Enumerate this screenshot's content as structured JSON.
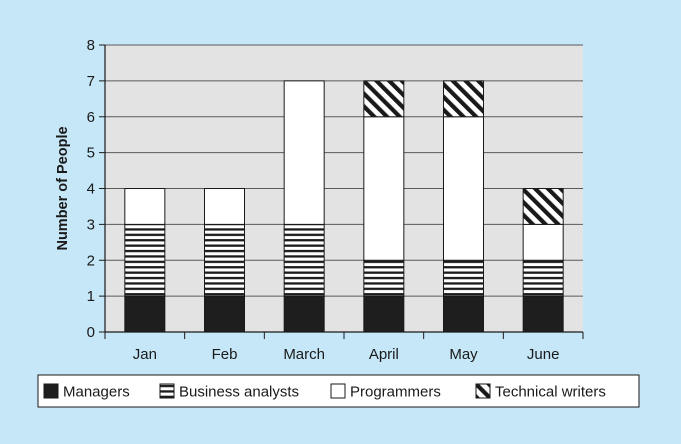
{
  "colors": {
    "background": "#c6e7f8",
    "plot_area": "#e3e3e3",
    "grid": "#5a5a5a",
    "managers": "#1e1e1e",
    "business_analysts": "#ffffff",
    "programmers": "#ffffff",
    "technical_writers": "#ffffff",
    "outline": "#1a1a1a"
  },
  "icons": {
    "managers": "solid-fill-swatch",
    "business_analysts": "horizontal-stripe-swatch",
    "programmers": "blank-swatch",
    "technical_writers": "diagonal-hatch-swatch"
  },
  "chart_data": {
    "type": "bar",
    "stacked": true,
    "title": "",
    "xlabel": "",
    "ylabel": "Number of People",
    "ylim": [
      0,
      8
    ],
    "yticks": [
      "0",
      "1",
      "2",
      "3",
      "4",
      "5",
      "6",
      "7",
      "8"
    ],
    "grid": true,
    "legend_position": "bottom",
    "categories": [
      "Jan",
      "Feb",
      "March",
      "April",
      "May",
      "June"
    ],
    "series": [
      {
        "name": "Managers",
        "pattern": "solid",
        "values": [
          1,
          1,
          1,
          1,
          1,
          1
        ]
      },
      {
        "name": "Business analysts",
        "pattern": "horizontal-stripes",
        "values": [
          2,
          2,
          2,
          1,
          1,
          1
        ]
      },
      {
        "name": "Programmers",
        "pattern": "blank",
        "values": [
          1,
          1,
          4,
          4,
          4,
          1
        ]
      },
      {
        "name": "Technical writers",
        "pattern": "diagonal-hatch",
        "values": [
          0,
          0,
          0,
          1,
          1,
          1
        ]
      }
    ]
  }
}
